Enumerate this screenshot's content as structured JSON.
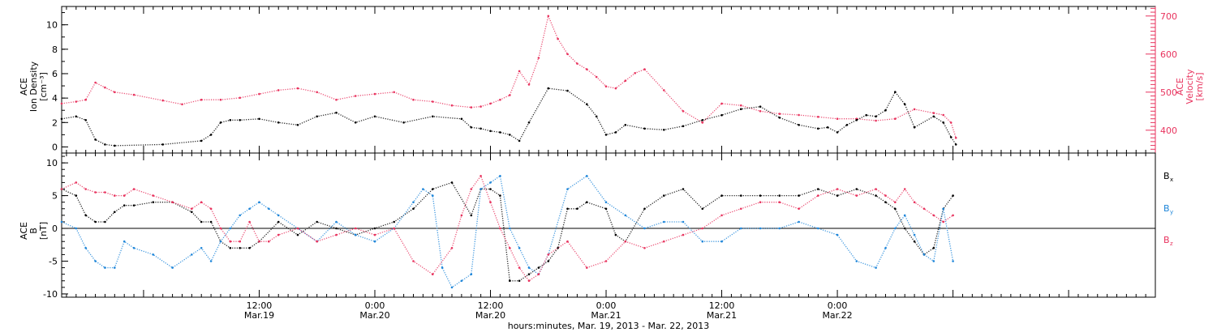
{
  "colors": {
    "black": "#000000",
    "pink": "#e8335e",
    "blue": "#1f86d9"
  },
  "figure": {
    "caption": "hours:minutes, Mar. 19, 2013 - Mar. 22, 2013"
  },
  "x_axis": {
    "units": "hours since Mar. 19 00:00",
    "range": [
      -8.5,
      105
    ],
    "major_ticks": [
      {
        "value": 12,
        "time": "12:00",
        "date": "Mar.19"
      },
      {
        "value": 24,
        "time": "0:00",
        "date": "Mar.20"
      },
      {
        "value": 36,
        "time": "12:00",
        "date": "Mar.20"
      },
      {
        "value": 48,
        "time": "0:00",
        "date": "Mar.21"
      },
      {
        "value": 60,
        "time": "12:00",
        "date": "Mar.21"
      },
      {
        "value": 72,
        "time": "0:00",
        "date": "Mar.22"
      }
    ],
    "minor_tick_step": 1,
    "data_end": 61.5
  },
  "chart_data": [
    {
      "type": "scatter",
      "panel": "top",
      "left_axis": {
        "label_lines": [
          "ACE",
          "Ion Density",
          "[cm⁻³]"
        ],
        "ylim": [
          -0.5,
          11.5
        ],
        "ticks": [
          0,
          2,
          4,
          6,
          8,
          10
        ]
      },
      "right_axis": {
        "label_lines": [
          "ACE",
          "Velocity",
          "[km/s]"
        ],
        "ylim": [
          340,
          725
        ],
        "ticks": [
          400,
          500,
          600,
          700
        ]
      },
      "series": [
        {
          "axis": "left",
          "color": "#000000",
          "x": [
            -8.5,
            -7,
            -6,
            -5,
            -4,
            -3,
            2,
            6,
            7,
            8,
            9,
            10,
            12,
            14,
            16,
            18,
            20,
            22,
            24,
            27,
            30,
            33,
            34,
            35,
            36,
            37,
            38,
            39,
            40,
            42,
            44,
            46,
            47,
            48,
            49,
            50,
            52,
            54,
            56,
            58,
            60,
            62,
            64,
            66,
            68,
            70,
            71,
            72,
            73,
            74,
            75,
            76,
            77,
            78,
            79,
            80,
            82,
            83,
            83.8,
            84.3
          ],
          "y": [
            2.3,
            2.5,
            2.2,
            0.6,
            0.2,
            0.1,
            0.2,
            0.5,
            1.0,
            2.0,
            2.2,
            2.2,
            2.3,
            2.0,
            1.8,
            2.5,
            2.8,
            2.0,
            2.5,
            2.0,
            2.5,
            2.3,
            1.6,
            1.5,
            1.3,
            1.2,
            1.0,
            0.5,
            2.0,
            4.8,
            4.6,
            3.5,
            2.5,
            1.0,
            1.2,
            1.8,
            1.5,
            1.4,
            1.7,
            2.2,
            2.6,
            3.1,
            3.3,
            2.4,
            1.8,
            1.5,
            1.6,
            1.2,
            1.8,
            2.2,
            2.6,
            2.5,
            3.0,
            4.5,
            3.5,
            1.6,
            2.5,
            2.0,
            0.8,
            0.2
          ]
        },
        {
          "axis": "right",
          "color": "#e8335e",
          "x": [
            -8.5,
            -7,
            -6,
            -5,
            -4,
            -3,
            -1,
            2,
            4,
            6,
            8,
            10,
            12,
            14,
            16,
            18,
            20,
            22,
            24,
            26,
            28,
            30,
            32,
            34,
            35,
            36,
            37,
            38,
            39,
            40,
            41,
            42,
            43,
            44,
            45,
            46,
            47,
            48,
            49,
            50,
            51,
            52,
            54,
            56,
            58,
            60,
            62,
            64,
            66,
            68,
            70,
            72,
            74,
            76,
            78,
            80,
            82,
            83,
            83.8,
            84.3
          ],
          "y": [
            470,
            475,
            480,
            525,
            512,
            500,
            493,
            478,
            468,
            480,
            480,
            485,
            495,
            505,
            510,
            500,
            480,
            490,
            495,
            500,
            480,
            475,
            465,
            460,
            462,
            470,
            480,
            492,
            555,
            520,
            590,
            700,
            640,
            600,
            575,
            560,
            540,
            515,
            510,
            530,
            550,
            560,
            505,
            450,
            420,
            470,
            465,
            450,
            443,
            440,
            435,
            430,
            430,
            425,
            430,
            455,
            445,
            440,
            420,
            380
          ]
        }
      ]
    },
    {
      "type": "scatter",
      "panel": "bottom",
      "left_axis": {
        "label_lines": [
          "ACE",
          "B",
          "[nT]"
        ],
        "ylim": [
          -10.5,
          11.5
        ],
        "ticks": [
          -10,
          -5,
          0,
          5,
          10
        ]
      },
      "zero_line": 0,
      "legend": [
        {
          "label": "B",
          "sub": "x",
          "color": "#000000"
        },
        {
          "label": "B",
          "sub": "y",
          "color": "#1f86d9"
        },
        {
          "label": "B",
          "sub": "z",
          "color": "#e8335e"
        }
      ],
      "series": [
        {
          "name": "Bx",
          "color": "#000000",
          "x": [
            -8.5,
            -7,
            -6,
            -5,
            -4,
            -3,
            -2,
            -1,
            1,
            3,
            5,
            6,
            7,
            8,
            9,
            10,
            11,
            12,
            14,
            16,
            18,
            20,
            22,
            24,
            26,
            28,
            30,
            32,
            34,
            35,
            36,
            37,
            38,
            39,
            40,
            41,
            42,
            43,
            44,
            45,
            46,
            48,
            49,
            50,
            52,
            54,
            56,
            58,
            60,
            62,
            64,
            66,
            68,
            70,
            72,
            74,
            76,
            77,
            78,
            79,
            80,
            81,
            82,
            83,
            84
          ],
          "y": [
            6,
            5,
            2,
            1,
            1,
            2.5,
            3.5,
            3.5,
            4,
            4,
            2.5,
            1,
            1,
            -2,
            -3,
            -3,
            -3,
            -2,
            1,
            -1,
            1,
            0,
            -1,
            0,
            1,
            3,
            6,
            7,
            2,
            6,
            6,
            5,
            -8,
            -8,
            -7,
            -6,
            -5,
            -3,
            3,
            3,
            4,
            3,
            -1,
            -2,
            3,
            5,
            6,
            3,
            5,
            5,
            5,
            5,
            5,
            6,
            5,
            6,
            5,
            4,
            3,
            0,
            -2,
            -4,
            -3,
            3,
            5
          ]
        },
        {
          "name": "By",
          "color": "#1f86d9",
          "x": [
            -8.5,
            -7,
            -6,
            -5,
            -4,
            -3,
            -2,
            -1,
            1,
            3,
            5,
            6,
            7,
            8,
            9,
            10,
            11,
            12,
            13,
            14,
            16,
            18,
            20,
            22,
            24,
            26,
            28,
            29,
            30,
            31,
            32,
            33,
            34,
            35,
            36,
            37,
            38,
            39,
            40,
            41,
            42,
            44,
            46,
            48,
            50,
            52,
            54,
            56,
            58,
            60,
            62,
            64,
            66,
            68,
            70,
            72,
            74,
            76,
            77,
            78,
            79,
            80,
            81,
            82,
            83,
            84
          ],
          "y": [
            1,
            0,
            -3,
            -5,
            -6,
            -6,
            -2,
            -3,
            -4,
            -6,
            -4,
            -3,
            -5,
            -2,
            0,
            2,
            3,
            4,
            3,
            2,
            0,
            -2,
            1,
            -1,
            -2,
            0,
            4,
            6,
            5,
            -6,
            -9,
            -8,
            -7,
            6,
            7,
            8,
            0,
            -3,
            -6,
            -7,
            -4,
            6,
            8,
            4,
            2,
            0,
            1,
            1,
            -2,
            -2,
            0,
            0,
            0,
            1,
            0,
            -1,
            -5,
            -6,
            -3,
            0,
            2,
            -1,
            -4,
            -5,
            3,
            -5
          ]
        },
        {
          "name": "Bz",
          "color": "#e8335e",
          "x": [
            -8.5,
            -7,
            -6,
            -5,
            -4,
            -3,
            -2,
            -1,
            1,
            3,
            5,
            6,
            7,
            8,
            9,
            10,
            11,
            12,
            13,
            14,
            16,
            18,
            20,
            22,
            24,
            26,
            28,
            30,
            32,
            33,
            34,
            35,
            36,
            37,
            38,
            39,
            40,
            41,
            42,
            44,
            46,
            48,
            50,
            52,
            54,
            56,
            58,
            60,
            62,
            64,
            66,
            68,
            70,
            72,
            74,
            76,
            77,
            78,
            79,
            80,
            81,
            82,
            83,
            84
          ],
          "y": [
            6,
            7,
            6,
            5.5,
            5.5,
            5,
            5,
            6,
            5,
            4,
            3,
            4,
            3,
            0,
            -2,
            -2,
            1,
            -2,
            -2,
            -1,
            0,
            -2,
            -1,
            0,
            -1,
            0,
            -5,
            -7,
            -3,
            2,
            6,
            8,
            4,
            0,
            -3,
            -6,
            -8,
            -7,
            -4,
            -2,
            -6,
            -5,
            -2,
            -3,
            -2,
            -1,
            0,
            2,
            3,
            4,
            4,
            3,
            5,
            6,
            5,
            6,
            5,
            4,
            6,
            4,
            3,
            2,
            1,
            2
          ]
        }
      ]
    }
  ]
}
